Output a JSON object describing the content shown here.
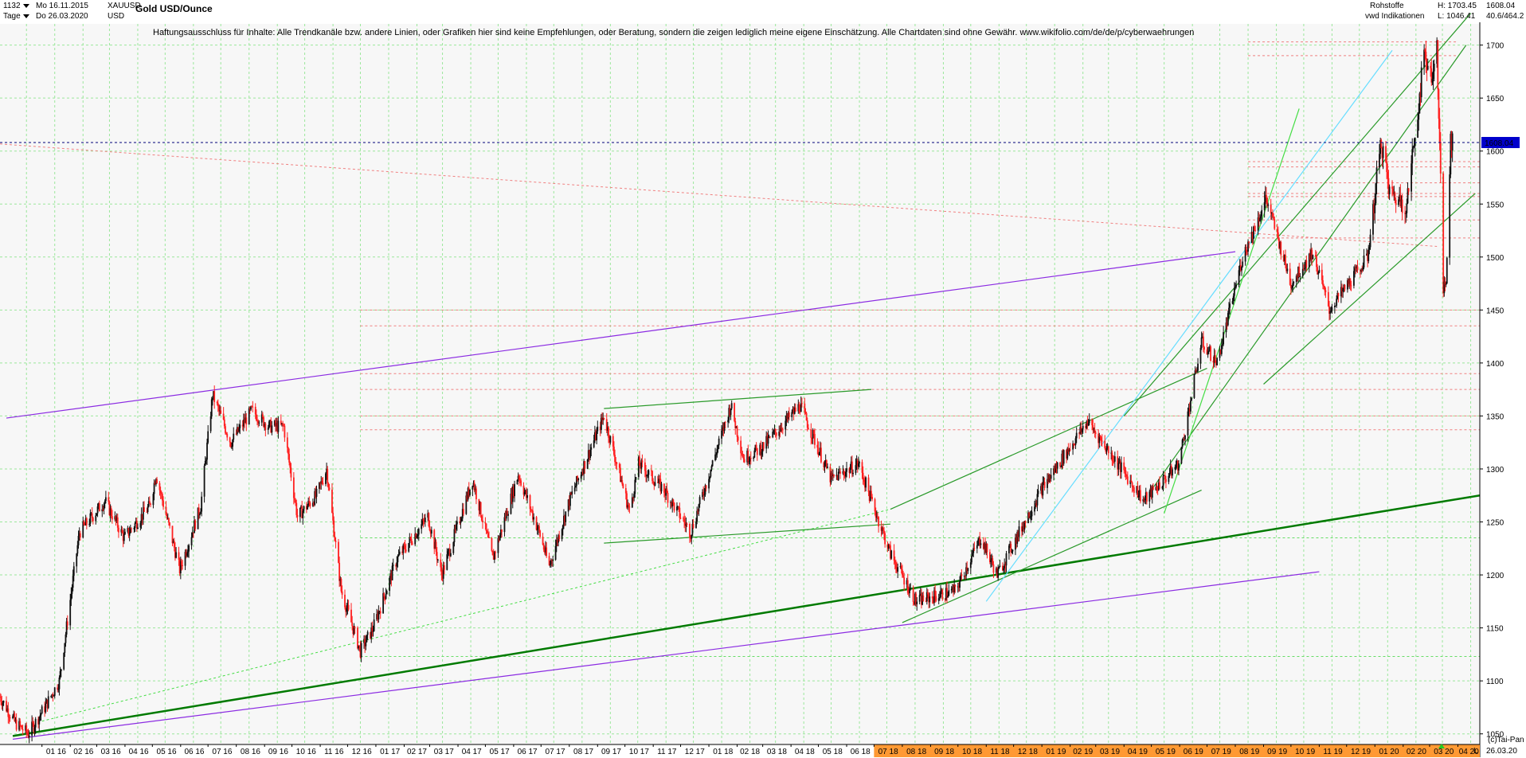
{
  "header": {
    "symbol_id": "1132",
    "date_from": "Mo 16.11.2015",
    "period": "Tage",
    "date_to": "Do 26.03.2020",
    "ticker": "XAUUSD",
    "currency": "USD",
    "title": "Gold USD/Ounce",
    "disclaimer": "Haftungsausschluss für Inhalte: Alle Trendkanäle bzw. andere Linien, oder Grafiken hier sind keine Empfehlungen, oder Beratung, sondern die zeigen lediglich meine eigene Einschätzung. Alle Chartdaten sind ohne Gewähr.  www.wikifolio.com/de/de/p/cyberwaehrungen",
    "category": "Rohstoffe",
    "source": "vwd Indikationen",
    "high_label": "H: 1703.45",
    "low_label": "L: 1046.41",
    "last_value": "1608.04",
    "ratio": "40.6/464.2",
    "copyright": "(c)Tai-Pan",
    "footer_l": "L",
    "footer_date": "26.03.20"
  },
  "chart_data": {
    "type": "candlestick",
    "title": "Gold USD/Ounce",
    "unit": "USD",
    "ylim": [
      1040,
      1720
    ],
    "y_ticks": [
      1050,
      1100,
      1150,
      1200,
      1250,
      1300,
      1350,
      1400,
      1450,
      1500,
      1550,
      1600,
      1650,
      1700
    ],
    "last_price": 1608.04,
    "high": 1703.45,
    "low": 1046.41,
    "x_ticks": [
      "01 16",
      "02 16",
      "03 16",
      "04 16",
      "05 16",
      "06 16",
      "07 16",
      "08 16",
      "09 16",
      "10 16",
      "11 16",
      "12 16",
      "01 17",
      "02 17",
      "03 17",
      "04 17",
      "05 17",
      "06 17",
      "07 17",
      "08 17",
      "09 17",
      "10 17",
      "11 17",
      "12 17",
      "01 18",
      "02 18",
      "03 18",
      "04 18",
      "05 18",
      "06 18",
      "07 18",
      "08 18",
      "09 18",
      "10 18",
      "11 18",
      "12 18",
      "01 19",
      "02 19",
      "03 19",
      "04 19",
      "05 19",
      "06 19",
      "07 19",
      "08 19",
      "09 19",
      "10 19",
      "11 19",
      "12 19",
      "01 20",
      "02 20",
      "03 20",
      "04 20"
    ],
    "x_range": [
      "2015-11-16",
      "2020-04-25"
    ],
    "price_path": [
      [
        "2015-11-16",
        1085
      ],
      [
        "2015-12-03",
        1060
      ],
      [
        "2015-12-17",
        1050
      ],
      [
        "2016-01-04",
        1075
      ],
      [
        "2016-01-20",
        1100
      ],
      [
        "2016-02-11",
        1240
      ],
      [
        "2016-03-10",
        1270
      ],
      [
        "2016-03-31",
        1235
      ],
      [
        "2016-04-28",
        1265
      ],
      [
        "2016-05-05",
        1295
      ],
      [
        "2016-05-31",
        1205
      ],
      [
        "2016-06-23",
        1265
      ],
      [
        "2016-07-06",
        1370
      ],
      [
        "2016-07-26",
        1325
      ],
      [
        "2016-08-18",
        1355
      ],
      [
        "2016-09-06",
        1340
      ],
      [
        "2016-09-22",
        1340
      ],
      [
        "2016-10-07",
        1255
      ],
      [
        "2016-10-28",
        1275
      ],
      [
        "2016-11-08",
        1300
      ],
      [
        "2016-11-24",
        1185
      ],
      [
        "2016-12-15",
        1128
      ],
      [
        "2016-12-29",
        1150
      ],
      [
        "2017-01-24",
        1215
      ],
      [
        "2017-02-27",
        1255
      ],
      [
        "2017-03-14",
        1200
      ],
      [
        "2017-04-17",
        1290
      ],
      [
        "2017-05-09",
        1215
      ],
      [
        "2017-06-06",
        1295
      ],
      [
        "2017-06-29",
        1240
      ],
      [
        "2017-07-10",
        1208
      ],
      [
        "2017-08-01",
        1270
      ],
      [
        "2017-09-08",
        1350
      ],
      [
        "2017-10-06",
        1260
      ],
      [
        "2017-10-16",
        1305
      ],
      [
        "2017-11-13",
        1280
      ],
      [
        "2017-12-12",
        1240
      ],
      [
        "2018-01-25",
        1360
      ],
      [
        "2018-02-08",
        1310
      ],
      [
        "2018-02-28",
        1320
      ],
      [
        "2018-04-11",
        1360
      ],
      [
        "2018-05-15",
        1290
      ],
      [
        "2018-06-14",
        1305
      ],
      [
        "2018-07-19",
        1220
      ],
      [
        "2018-08-16",
        1175
      ],
      [
        "2018-09-28",
        1185
      ],
      [
        "2018-10-26",
        1235
      ],
      [
        "2018-11-13",
        1200
      ],
      [
        "2018-12-31",
        1280
      ],
      [
        "2019-02-20",
        1345
      ],
      [
        "2019-04-23",
        1270
      ],
      [
        "2019-05-31",
        1305
      ],
      [
        "2019-06-25",
        1420
      ],
      [
        "2019-07-12",
        1400
      ],
      [
        "2019-08-09",
        1500
      ],
      [
        "2019-09-04",
        1555
      ],
      [
        "2019-10-01",
        1475
      ],
      [
        "2019-10-25",
        1505
      ],
      [
        "2019-11-12",
        1450
      ],
      [
        "2019-12-24",
        1500
      ],
      [
        "2020-01-08",
        1610
      ],
      [
        "2020-01-17",
        1560
      ],
      [
        "2020-02-05",
        1550
      ],
      [
        "2020-02-24",
        1690
      ],
      [
        "2020-03-05",
        1670
      ],
      [
        "2020-03-09",
        1700
      ],
      [
        "2020-03-16",
        1470
      ],
      [
        "2020-03-19",
        1475
      ],
      [
        "2020-03-24",
        1615
      ],
      [
        "2020-03-26",
        1608
      ]
    ],
    "horizontal_levels": [
      1123,
      1235,
      1337,
      1350,
      1375,
      1390,
      1435,
      1450,
      1518,
      1535,
      1557,
      1560,
      1570,
      1585,
      1590,
      1690,
      1703
    ],
    "trendlines": [
      {
        "color": "#8b2be2",
        "points": [
          [
            "2015-11-23",
            1348
          ],
          [
            "2019-08-01",
            1505
          ]
        ]
      },
      {
        "color": "#8b2be2",
        "points": [
          [
            "2015-11-30",
            1045
          ],
          [
            "2019-11-01",
            1203
          ]
        ]
      },
      {
        "color": "#007a00",
        "points": [
          [
            "2015-11-30",
            1048
          ],
          [
            "2020-04-25",
            1275
          ]
        ]
      },
      {
        "color": "#2a9a2a",
        "points": [
          [
            "2017-09-08",
            1357
          ],
          [
            "2018-06-28",
            1375
          ]
        ]
      },
      {
        "color": "#2a9a2a",
        "points": [
          [
            "2017-09-08",
            1230
          ],
          [
            "2018-07-19",
            1248
          ]
        ]
      },
      {
        "color": "#2a9a2a",
        "points": [
          [
            "2018-07-19",
            1262
          ],
          [
            "2019-07-01",
            1395
          ]
        ]
      },
      {
        "color": "#2a9a2a",
        "points": [
          [
            "2018-08-01",
            1155
          ],
          [
            "2019-06-25",
            1280
          ]
        ]
      },
      {
        "color": "#2a9a2a",
        "points": [
          [
            "2019-04-01",
            1350
          ],
          [
            "2020-04-15",
            1730
          ]
        ]
      },
      {
        "color": "#2a9a2a",
        "points": [
          [
            "2019-05-01",
            1280
          ],
          [
            "2020-04-10",
            1700
          ]
        ]
      },
      {
        "color": "#2a9a2a",
        "points": [
          [
            "2019-09-01",
            1380
          ],
          [
            "2020-04-20",
            1560
          ]
        ]
      },
      {
        "color": "#44dd44",
        "points": [
          [
            "2019-05-15",
            1258
          ],
          [
            "2019-10-10",
            1640
          ]
        ]
      },
      {
        "color": "#66ddff",
        "points": [
          [
            "2018-11-01",
            1175
          ],
          [
            "2020-01-20",
            1695
          ]
        ]
      }
    ]
  }
}
